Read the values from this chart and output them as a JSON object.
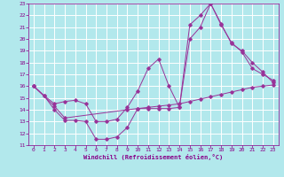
{
  "xlabel": "Windchill (Refroidissement éolien,°C)",
  "xlim": [
    -0.5,
    23.5
  ],
  "ylim": [
    11,
    23
  ],
  "xticks": [
    0,
    1,
    2,
    3,
    4,
    5,
    6,
    7,
    8,
    9,
    10,
    11,
    12,
    13,
    14,
    15,
    16,
    17,
    18,
    19,
    20,
    21,
    22,
    23
  ],
  "yticks": [
    11,
    12,
    13,
    14,
    15,
    16,
    17,
    18,
    19,
    20,
    21,
    22,
    23
  ],
  "bg_color": "#b2e8ec",
  "grid_color": "#ccdddd",
  "line_color": "#993399",
  "line1_x": [
    0,
    1,
    2,
    3,
    4,
    5,
    6,
    7,
    8,
    9,
    10,
    11,
    12,
    13,
    14,
    15,
    16,
    17,
    18,
    19,
    20,
    21,
    22,
    23
  ],
  "line1_y": [
    16.0,
    15.2,
    14.0,
    13.1,
    13.1,
    13.0,
    11.5,
    11.5,
    11.7,
    12.5,
    14.1,
    14.1,
    14.1,
    14.1,
    14.2,
    20.0,
    21.0,
    23.0,
    21.2,
    19.7,
    18.9,
    17.5,
    17.0,
    16.5
  ],
  "line2_x": [
    0,
    1,
    2,
    3,
    4,
    5,
    6,
    7,
    8,
    9,
    10,
    11,
    12,
    13,
    14,
    15,
    16,
    17,
    18,
    19,
    20,
    21,
    22,
    23
  ],
  "line2_y": [
    16.0,
    15.2,
    14.5,
    14.7,
    14.8,
    14.5,
    13.0,
    13.0,
    13.2,
    14.2,
    15.6,
    17.5,
    18.3,
    16.0,
    14.2,
    21.2,
    22.0,
    23.0,
    21.3,
    19.6,
    19.0,
    18.0,
    17.2,
    16.3
  ],
  "line3_x": [
    0,
    2,
    3,
    9,
    10,
    11,
    12,
    13,
    14,
    15,
    16,
    17,
    18,
    19,
    20,
    21,
    22,
    23
  ],
  "line3_y": [
    16.0,
    14.3,
    13.3,
    14.0,
    14.1,
    14.2,
    14.3,
    14.4,
    14.5,
    14.7,
    14.9,
    15.1,
    15.3,
    15.5,
    15.7,
    15.9,
    16.0,
    16.1
  ]
}
